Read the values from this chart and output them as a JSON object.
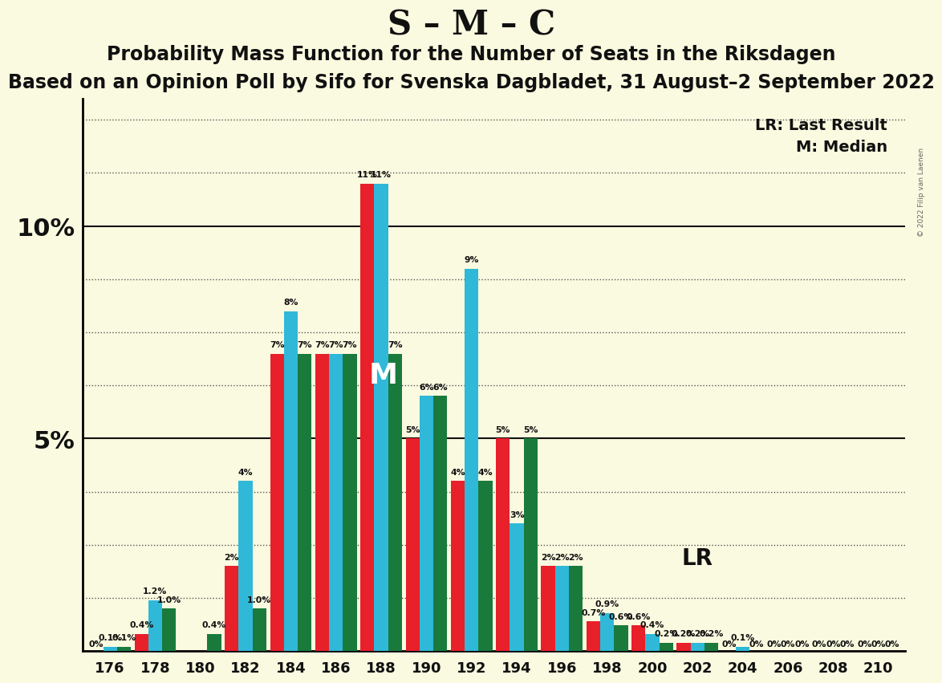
{
  "title": "S – M – C",
  "subtitle1": "Probability Mass Function for the Number of Seats in the Riksdagen",
  "subtitle2": "Based on an Opinion Poll by Sifo for Svenska Dagbladet, 31 August–2 September 2022",
  "copyright": "© 2022 Filip van Laenen",
  "legend_lr": "LR: Last Result",
  "legend_m": "M: Median",
  "background_color": "#FAFAE0",
  "bar_colors_order": [
    "#E8202A",
    "#30B8D8",
    "#1A7A3C"
  ],
  "seats": [
    176,
    178,
    180,
    182,
    184,
    186,
    188,
    190,
    192,
    194,
    196,
    198,
    200,
    202,
    204,
    206,
    208,
    210
  ],
  "red_values": [
    0.0,
    0.4,
    0.0,
    2.0,
    7.0,
    7.0,
    11.0,
    5.0,
    4.0,
    5.0,
    2.0,
    0.7,
    0.6,
    0.2,
    0.0,
    0.0,
    0.0,
    0.0
  ],
  "cyan_values": [
    0.1,
    1.2,
    0.0,
    4.0,
    8.0,
    7.0,
    11.0,
    6.0,
    9.0,
    3.0,
    2.0,
    0.9,
    0.4,
    0.2,
    0.1,
    0.0,
    0.0,
    0.0
  ],
  "green_values": [
    0.1,
    1.0,
    0.4,
    1.0,
    7.0,
    7.0,
    7.0,
    6.0,
    4.0,
    5.0,
    2.0,
    0.6,
    0.2,
    0.2,
    0.0,
    0.0,
    0.0,
    0.0
  ],
  "red_labels": [
    "0%",
    "0.4%",
    "",
    "2%",
    "7%",
    "7%",
    "11%",
    "5%",
    "4%",
    "5%",
    "2%",
    "0.7%",
    "0.6%",
    "0.2%",
    "0%",
    "0%",
    "0%",
    "0%"
  ],
  "cyan_labels": [
    "0.1%",
    "1.2%",
    "",
    "4%",
    "8%",
    "7%",
    "11%",
    "6%",
    "9%",
    "3%",
    "2%",
    "0.9%",
    "0.4%",
    "0.2%",
    "0.1%",
    "0%",
    "0%",
    "0%"
  ],
  "green_labels": [
    "0.1%",
    "1.0%",
    "0.4%",
    "1.0%",
    "7%",
    "7%",
    "7%",
    "6%",
    "4%",
    "5%",
    "2%",
    "0.6%",
    "0.2%",
    "0.2%",
    "0%",
    "0%",
    "0%",
    "0%"
  ],
  "ylim": [
    0,
    13.0
  ],
  "title_fontsize": 30,
  "subtitle1_fontsize": 17,
  "subtitle2_fontsize": 17,
  "median_seat": 188,
  "lr_seat": 200
}
